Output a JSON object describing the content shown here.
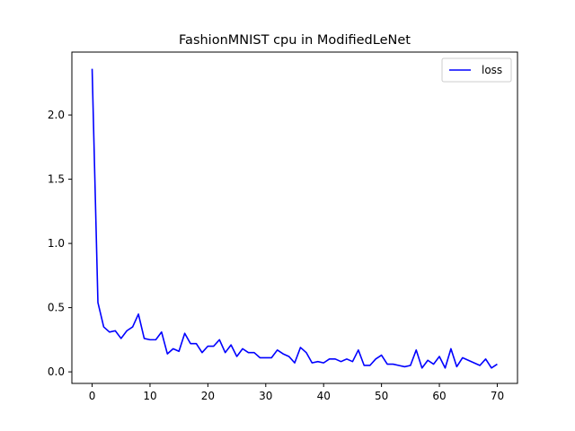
{
  "chart_data": {
    "type": "line",
    "title": "FashionMNIST cpu in ModifiedLeNet",
    "xlabel": "",
    "ylabel": "",
    "xlim": [
      -3.5,
      73.5
    ],
    "ylim": [
      -0.09,
      2.49
    ],
    "xticks": [
      0,
      10,
      20,
      30,
      40,
      50,
      60,
      70
    ],
    "xtick_labels": [
      "0",
      "10",
      "20",
      "30",
      "40",
      "50",
      "60",
      "70"
    ],
    "yticks": [
      0.0,
      0.5,
      1.0,
      1.5,
      2.0
    ],
    "ytick_labels": [
      "0.0",
      "0.5",
      "1.0",
      "1.5",
      "2.0"
    ],
    "grid": false,
    "legend_position": "top-right",
    "series": [
      {
        "name": "loss",
        "color": "#0000ff",
        "x": [
          0,
          1,
          2,
          3,
          4,
          5,
          6,
          7,
          8,
          9,
          10,
          11,
          12,
          13,
          14,
          15,
          16,
          17,
          18,
          19,
          20,
          21,
          22,
          23,
          24,
          25,
          26,
          27,
          28,
          29,
          30,
          31,
          32,
          33,
          34,
          35,
          36,
          37,
          38,
          39,
          40,
          41,
          42,
          43,
          44,
          45,
          46,
          47,
          48,
          49,
          50,
          51,
          52,
          53,
          54,
          55,
          56,
          57,
          58,
          59,
          60,
          61,
          62,
          63,
          64,
          65,
          66,
          67,
          68,
          69,
          70
        ],
        "y": [
          2.36,
          0.54,
          0.35,
          0.31,
          0.32,
          0.26,
          0.32,
          0.35,
          0.45,
          0.26,
          0.25,
          0.25,
          0.31,
          0.14,
          0.18,
          0.16,
          0.3,
          0.22,
          0.22,
          0.15,
          0.2,
          0.2,
          0.25,
          0.15,
          0.21,
          0.12,
          0.18,
          0.15,
          0.15,
          0.11,
          0.11,
          0.11,
          0.17,
          0.14,
          0.12,
          0.07,
          0.19,
          0.15,
          0.07,
          0.08,
          0.07,
          0.1,
          0.1,
          0.08,
          0.1,
          0.08,
          0.17,
          0.05,
          0.05,
          0.1,
          0.13,
          0.06,
          0.06,
          0.05,
          0.04,
          0.05,
          0.17,
          0.03,
          0.09,
          0.06,
          0.12,
          0.03,
          0.18,
          0.04,
          0.11,
          0.09,
          0.07,
          0.05,
          0.1,
          0.03,
          0.06
        ]
      }
    ]
  }
}
